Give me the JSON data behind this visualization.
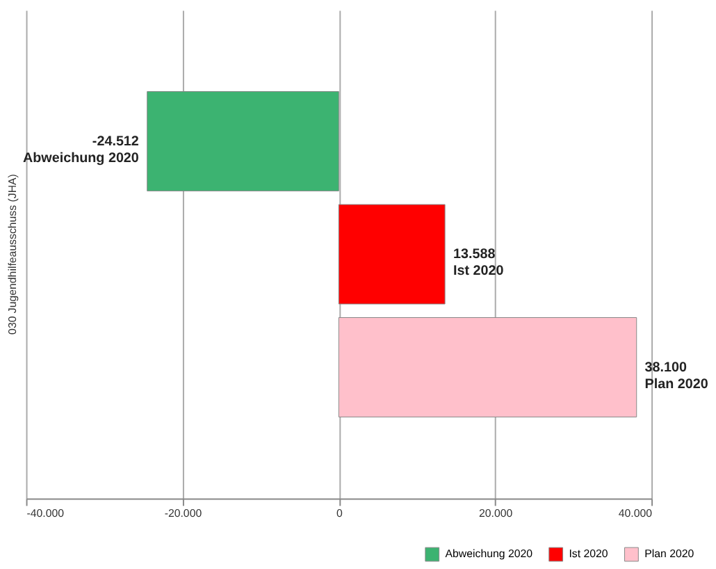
{
  "chart_data": {
    "type": "bar",
    "orientation": "horizontal",
    "categories": [
      "030 Jugendhilfeausschuss (JHA)"
    ],
    "series": [
      {
        "name": "Abweichung 2020",
        "color": "#3cb371",
        "values": [
          -24512
        ],
        "value_labels": [
          "-24.512"
        ]
      },
      {
        "name": "Ist 2020",
        "color": "#ff0000",
        "values": [
          13588
        ],
        "value_labels": [
          "13.588"
        ]
      },
      {
        "name": "Plan 2020",
        "color": "#ffc0cb",
        "values": [
          38100
        ],
        "value_labels": [
          "38.100"
        ]
      }
    ],
    "xlim": [
      -40000,
      40000
    ],
    "xticks": [
      {
        "value": -40000,
        "label": "-40.000"
      },
      {
        "value": -20000,
        "label": "-20.000"
      },
      0,
      {
        "value": 20000,
        "label": "20.000"
      },
      {
        "value": 40000,
        "label": "40.000"
      }
    ],
    "grid": "x",
    "legend": "bottom right"
  }
}
